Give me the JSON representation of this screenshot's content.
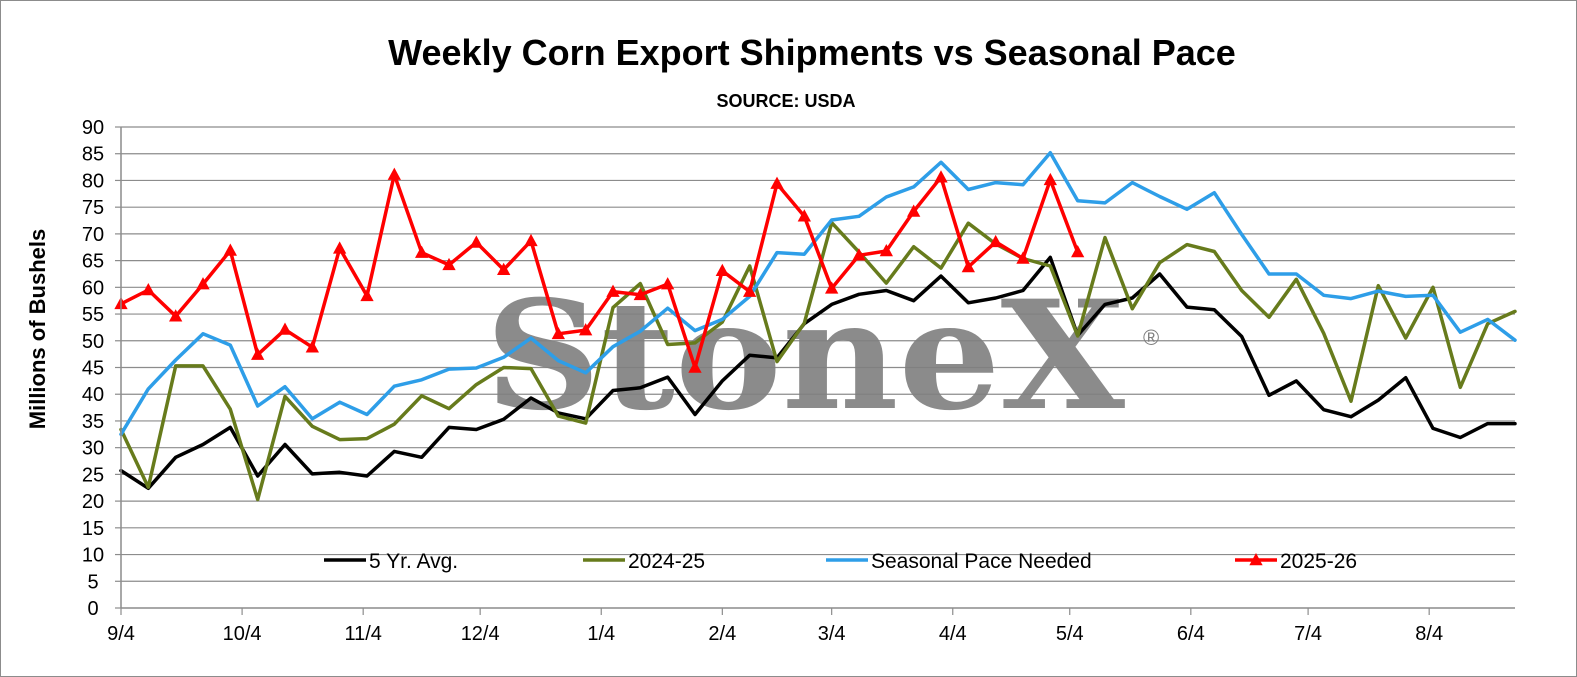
{
  "chart_data": {
    "type": "line",
    "title": "Weekly Corn Export Shipments vs Seasonal Pace",
    "subtitle": "SOURCE: USDA",
    "ylabel": "Millions of Bushels",
    "xlabel": "",
    "ylim": [
      0,
      90
    ],
    "yticks": [
      0,
      5,
      10,
      15,
      20,
      25,
      30,
      35,
      40,
      45,
      50,
      55,
      60,
      65,
      70,
      75,
      80,
      85,
      90
    ],
    "xtick_labels": [
      "9/4",
      "10/4",
      "11/4",
      "12/4",
      "1/4",
      "2/4",
      "3/4",
      "4/4",
      "5/4",
      "6/4",
      "7/4",
      "8/4"
    ],
    "xtick_weeks": [
      0,
      4.43,
      8.86,
      13.14,
      17.57,
      22,
      26,
      30.43,
      34.71,
      39.14,
      43.43,
      47.86
    ],
    "n_weeks": 52,
    "grid": true,
    "legend_position": "bottom-inside",
    "watermark": "StoneX",
    "watermark_mark": "®",
    "series": [
      {
        "name": "5 Yr. Avg.",
        "color": "#000000",
        "marker": "none",
        "values": [
          25.7,
          22.4,
          28.2,
          30.6,
          33.8,
          24.7,
          30.6,
          25.1,
          25.4,
          24.7,
          29.3,
          28.2,
          33.8,
          33.4,
          35.3,
          39.3,
          36.5,
          35.4,
          40.7,
          41.2,
          43.2,
          36.2,
          42.5,
          47.3,
          46.8,
          53.2,
          56.8,
          58.7,
          59.4,
          57.5,
          62.1,
          57.1,
          58.0,
          59.4,
          65.6,
          51.0,
          56.8,
          58.0,
          62.5,
          56.3,
          55.8,
          50.8,
          39.8,
          42.5,
          37.1,
          35.8,
          38.9,
          43.1,
          33.6,
          31.9,
          34.5,
          34.5
        ]
      },
      {
        "name": "2024-25",
        "color": "#677b1c",
        "marker": "none",
        "values": [
          33.4,
          22.6,
          45.3,
          45.3,
          37.2,
          20.3,
          39.6,
          34.0,
          31.5,
          31.7,
          34.4,
          39.7,
          37.3,
          41.8,
          45.0,
          44.8,
          35.9,
          34.6,
          56.2,
          60.7,
          49.3,
          49.6,
          53.5,
          64.0,
          46.1,
          53.3,
          72.1,
          66.6,
          60.8,
          67.6,
          63.6,
          72.0,
          68.1,
          65.4,
          64.0,
          50.9,
          69.3,
          56.0,
          64.6,
          68.0,
          66.7,
          59.4,
          54.4,
          61.5,
          51.4,
          38.7,
          60.3,
          50.5,
          60.0,
          41.3,
          53.2,
          55.5
        ]
      },
      {
        "name": "Seasonal Pace Needed",
        "color": "#2e9ee8",
        "marker": "none",
        "values": [
          32.5,
          41.0,
          46.4,
          51.3,
          49.2,
          37.8,
          41.4,
          35.4,
          38.5,
          36.2,
          41.5,
          42.7,
          44.7,
          44.9,
          46.9,
          50.5,
          46.3,
          44.0,
          48.9,
          51.8,
          56.1,
          51.9,
          54.0,
          58.3,
          66.5,
          66.2,
          72.6,
          73.3,
          76.9,
          78.8,
          83.4,
          78.3,
          79.6,
          79.2,
          85.2,
          76.2,
          75.8,
          79.6,
          77.0,
          74.6,
          77.7,
          69.9,
          62.5,
          62.5,
          58.5,
          57.9,
          59.3,
          58.3,
          58.5,
          51.6,
          54.0,
          50.1
        ]
      },
      {
        "name": "2025-26",
        "color": "#ff0000",
        "marker": "triangle",
        "values": [
          56.9,
          59.5,
          54.6,
          60.6,
          66.9,
          47.4,
          52.1,
          48.8,
          67.3,
          58.4,
          81.1,
          66.5,
          64.2,
          68.4,
          63.3,
          68.7,
          51.3,
          52.0,
          59.2,
          58.6,
          60.6,
          45.0,
          63.1,
          59.2,
          79.4,
          73.3,
          59.8,
          66.0,
          66.8,
          74.2,
          80.6,
          63.8,
          68.5,
          65.4,
          80.1,
          66.6
        ]
      }
    ]
  }
}
